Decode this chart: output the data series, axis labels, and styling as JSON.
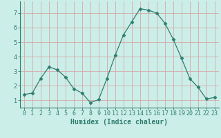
{
  "x": [
    0,
    1,
    2,
    3,
    4,
    5,
    6,
    7,
    8,
    9,
    10,
    11,
    12,
    13,
    14,
    15,
    16,
    17,
    18,
    19,
    20,
    21,
    22,
    23
  ],
  "y": [
    1.4,
    1.5,
    2.5,
    3.3,
    3.1,
    2.6,
    1.8,
    1.5,
    0.85,
    1.05,
    2.5,
    4.1,
    5.5,
    6.4,
    7.3,
    7.2,
    7.0,
    6.3,
    5.2,
    3.9,
    2.5,
    1.9,
    1.1,
    1.2
  ],
  "line_color": "#2e7d6e",
  "marker": "D",
  "marker_size": 2.5,
  "bg_color": "#cceee8",
  "grid_color": "#d4a8a8",
  "xlabel": "Humidex (Indice chaleur)",
  "xlabel_fontsize": 7,
  "tick_fontsize": 6,
  "ylim": [
    0.5,
    7.8
  ],
  "xlim": [
    -0.5,
    23.5
  ],
  "yticks": [
    1,
    2,
    3,
    4,
    5,
    6,
    7
  ],
  "xticks": [
    0,
    1,
    2,
    3,
    4,
    5,
    6,
    7,
    8,
    9,
    10,
    11,
    12,
    13,
    14,
    15,
    16,
    17,
    18,
    19,
    20,
    21,
    22,
    23
  ]
}
